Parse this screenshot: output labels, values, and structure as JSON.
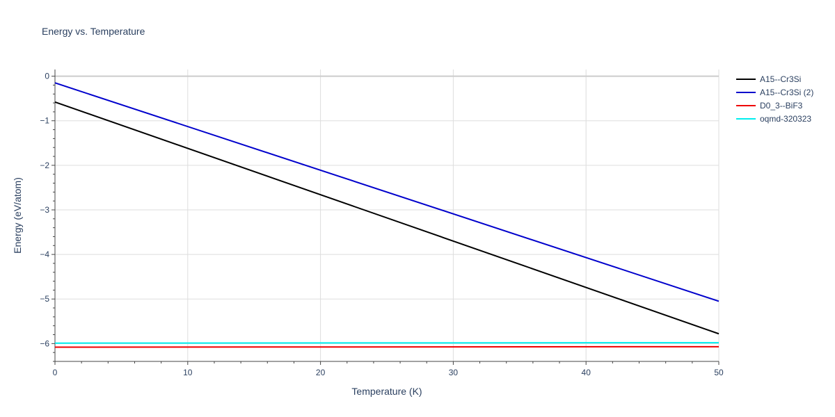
{
  "chart_data": {
    "type": "line",
    "title": "Energy vs. Temperature",
    "xlabel": "Temperature (K)",
    "ylabel": "Energy (eV/atom)",
    "xlim": [
      0,
      50
    ],
    "ylim": [
      -6.4,
      0.15
    ],
    "x_ticks": [
      0,
      10,
      20,
      30,
      40,
      50
    ],
    "x_tick_labels": [
      "0",
      "10",
      "20",
      "30",
      "40",
      "50"
    ],
    "y_ticks": [
      0,
      -1,
      -2,
      -3,
      -4,
      -5,
      -6
    ],
    "y_tick_labels": [
      "0",
      "−1",
      "−2",
      "−3",
      "−4",
      "−5",
      "−6"
    ],
    "grid": true,
    "legend_position": "top-right",
    "series": [
      {
        "name": "A15--Cr3Si",
        "color": "#000000",
        "x": [
          0,
          50
        ],
        "y": [
          -0.58,
          -5.78
        ]
      },
      {
        "name": "A15--Cr3Si (2)",
        "color": "#0000cc",
        "x": [
          0,
          50
        ],
        "y": [
          -0.15,
          -5.05
        ]
      },
      {
        "name": "D0_3--BiF3",
        "color": "#ee0000",
        "x": [
          0,
          50
        ],
        "y": [
          -6.08,
          -6.07
        ]
      },
      {
        "name": "oqmd-320323",
        "color": "#00eeee",
        "x": [
          0,
          50
        ],
        "y": [
          -5.99,
          -5.98
        ]
      }
    ]
  }
}
